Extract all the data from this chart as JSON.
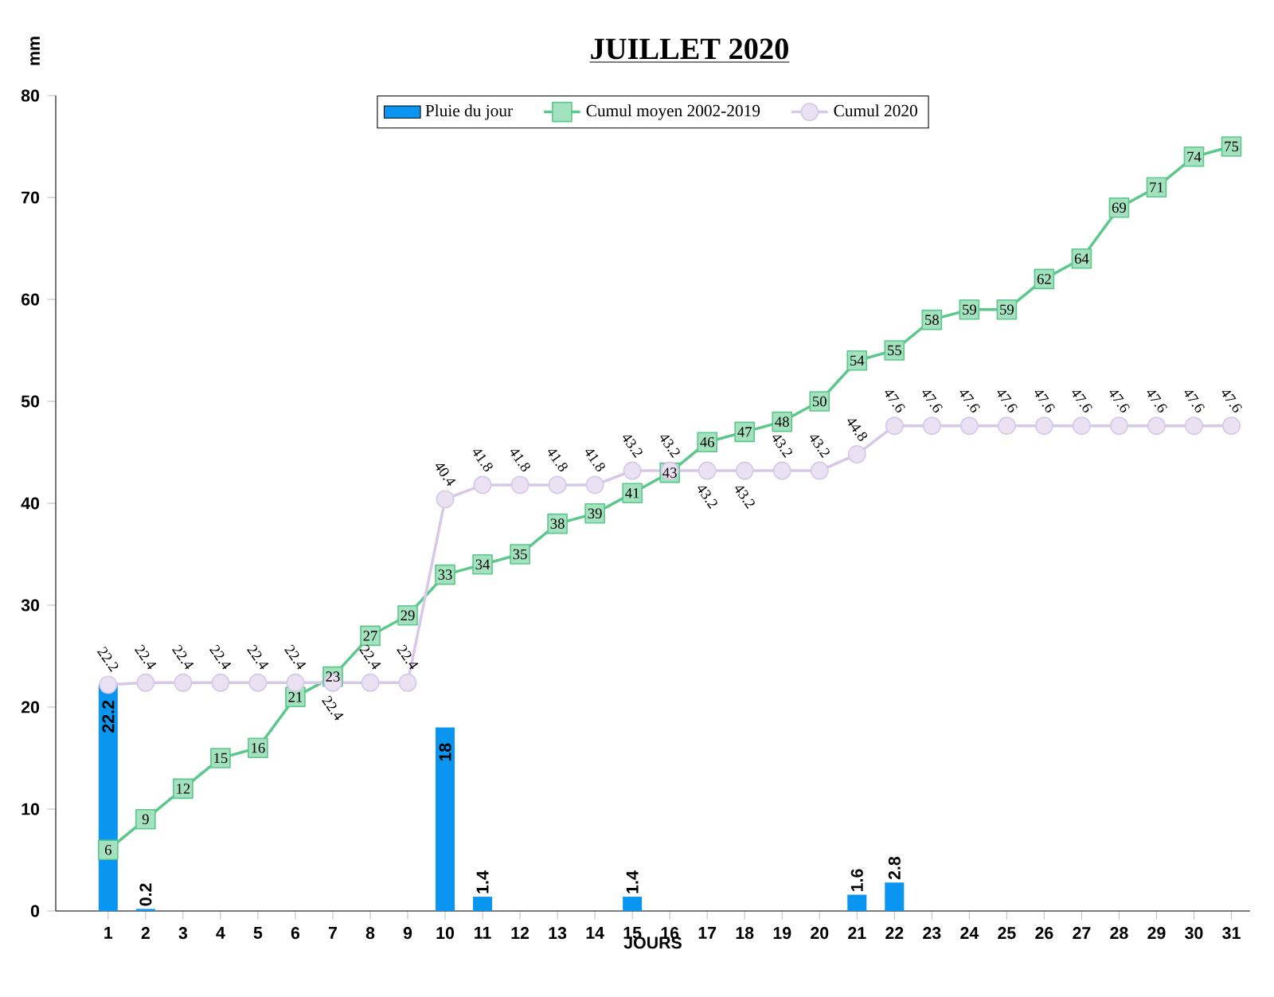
{
  "chart_data": {
    "type": "bar",
    "title": "JUILLET 2020",
    "xlabel": "JOURS",
    "ylabel": "mm",
    "categories": [
      "1",
      "2",
      "3",
      "4",
      "5",
      "6",
      "7",
      "8",
      "9",
      "10",
      "11",
      "12",
      "13",
      "14",
      "15",
      "16",
      "17",
      "18",
      "19",
      "20",
      "21",
      "22",
      "23",
      "24",
      "25",
      "26",
      "27",
      "28",
      "29",
      "30",
      "31"
    ],
    "series": [
      {
        "name": "Pluie du jour",
        "color": "#0a96f0",
        "values": [
          22.2,
          0.2,
          null,
          null,
          null,
          null,
          null,
          null,
          null,
          18,
          1.4,
          null,
          null,
          null,
          1.4,
          null,
          null,
          null,
          null,
          null,
          1.6,
          2.8,
          null,
          null,
          null,
          null,
          null,
          null,
          null,
          null,
          null
        ]
      },
      {
        "name": "Cumul moyen 2002-2019",
        "type": "line",
        "color": "#5ac88a",
        "marker": "square",
        "values": [
          6,
          9,
          12,
          15,
          16,
          21,
          23,
          27,
          29,
          33,
          34,
          35,
          38,
          39,
          41,
          43,
          46,
          47,
          48,
          50,
          54,
          55,
          58,
          59,
          59,
          62,
          64,
          69,
          71,
          74,
          75
        ]
      },
      {
        "name": "Cumul 2020",
        "type": "line",
        "color": "#d8c8e8",
        "marker": "circle",
        "values": [
          22.2,
          22.4,
          22.4,
          22.4,
          22.4,
          22.4,
          22.4,
          22.4,
          22.4,
          40.4,
          41.8,
          41.8,
          41.8,
          41.8,
          43.2,
          43.2,
          43.2,
          43.2,
          43.2,
          43.2,
          44.8,
          47.6,
          47.6,
          47.6,
          47.6,
          47.6,
          47.6,
          47.6,
          47.6,
          47.6,
          47.6
        ]
      }
    ],
    "ylim": [
      0,
      80
    ],
    "yticks": [
      0,
      10,
      20,
      30,
      40,
      50,
      60,
      70,
      80
    ],
    "grid": false,
    "legend": "top",
    "data_labels": true
  }
}
